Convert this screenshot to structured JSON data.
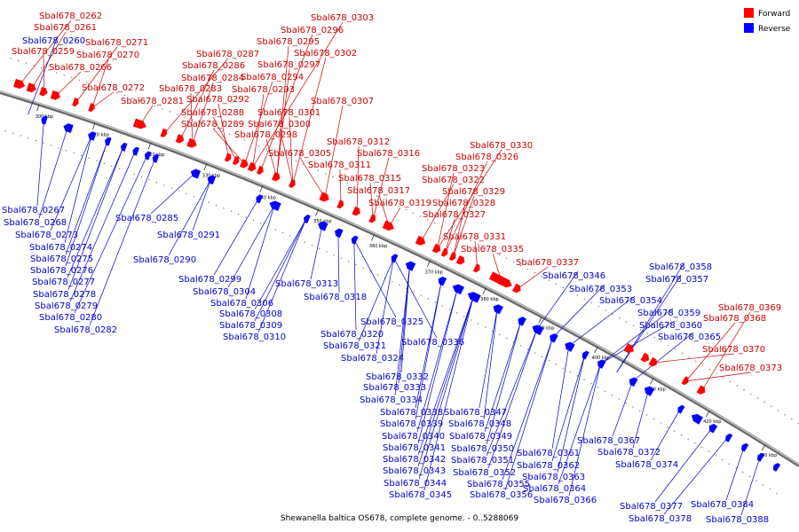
{
  "title": "Shewanella baltica OS678, complete genome. - 0..5288069",
  "legend": [
    {
      "label": "Forward",
      "color": "#ff0000"
    },
    {
      "label": "Reverse",
      "color": "#0000ff"
    }
  ],
  "colors": {
    "forward_text": "#cc0000",
    "reverse_text": "#0000cc",
    "backbone": "#888888"
  },
  "ticks": [
    {
      "kbp": 300,
      "label": "300 kbp"
    },
    {
      "kbp": 310,
      "label": "310 kbp"
    },
    {
      "kbp": 320,
      "label": "320 kbp"
    },
    {
      "kbp": 330,
      "label": "330 kbp"
    },
    {
      "kbp": 340,
      "label": "340 kbp"
    },
    {
      "kbp": 350,
      "label": "350 kbp"
    },
    {
      "kbp": 360,
      "label": "360 kbp"
    },
    {
      "kbp": 370,
      "label": "370 kbp"
    },
    {
      "kbp": 380,
      "label": "380 kbp"
    },
    {
      "kbp": 390,
      "label": "390 kbp"
    },
    {
      "kbp": 400,
      "label": "400 kbp"
    },
    {
      "kbp": 410,
      "label": "410 kbp"
    },
    {
      "kbp": 420,
      "label": "420 kbp"
    },
    {
      "kbp": 430,
      "label": "430 kbp"
    }
  ],
  "forward_labels": [
    "Sbal678_0262",
    "Sbal678_0261",
    "Sbal678_0259",
    "Sbal678_0266",
    "Sbal678_0271",
    "Sbal678_0270",
    "Sbal678_0272",
    "Sbal678_0281",
    "Sbal678_0287",
    "Sbal678_0286",
    "Sbal678_0284",
    "Sbal678_0283",
    "Sbal678_0292",
    "Sbal678_0288",
    "Sbal678_0289",
    "Sbal678_0303",
    "Sbal678_0296",
    "Sbal678_0295",
    "Sbal678_0302",
    "Sbal678_0297",
    "Sbal678_0294",
    "Sbal678_0293",
    "Sbal678_0301",
    "Sbal678_0300",
    "Sbal678_0298",
    "Sbal678_0307",
    "Sbal678_0305",
    "Sbal678_0312",
    "Sbal678_0316",
    "Sbal678_0311",
    "Sbal678_0315",
    "Sbal678_0317",
    "Sbal678_0319",
    "Sbal678_0330",
    "Sbal678_0326",
    "Sbal678_0323",
    "Sbal678_0322",
    "Sbal678_0329",
    "Sbal678_0328",
    "Sbal678_0327",
    "Sbal678_0331",
    "Sbal678_0335",
    "Sbal678_0337",
    "Sbal678_0369",
    "Sbal678_0368",
    "Sbal678_0370",
    "Sbal678_0373"
  ],
  "reverse_labels": [
    "Sbal678_0260",
    "Sbal678_0267",
    "Sbal678_0268",
    "Sbal678_0273",
    "Sbal678_0274",
    "Sbal678_0275",
    "Sbal678_0276",
    "Sbal678_0277",
    "Sbal678_0278",
    "Sbal678_0279",
    "Sbal678_0280",
    "Sbal678_0282",
    "Sbal678_0285",
    "Sbal678_0291",
    "Sbal678_0290",
    "Sbal678_0299",
    "Sbal678_0304",
    "Sbal678_0306",
    "Sbal678_0308",
    "Sbal678_0309",
    "Sbal678_0310",
    "Sbal678_0313",
    "Sbal678_0318",
    "Sbal678_0320",
    "Sbal678_0325",
    "Sbal678_0321",
    "Sbal678_0324",
    "Sbal678_0336",
    "Sbal678_0332",
    "Sbal678_0333",
    "Sbal678_0334",
    "Sbal678_0338",
    "Sbal678_0339",
    "Sbal678_0340",
    "Sbal678_0341",
    "Sbal678_0342",
    "Sbal678_0343",
    "Sbal678_0344",
    "Sbal678_0345",
    "Sbal678_0347",
    "Sbal678_0348",
    "Sbal678_0349",
    "Sbal678_0350",
    "Sbal678_0351",
    "Sbal678_0352",
    "Sbal678_0355",
    "Sbal678_0356",
    "Sbal678_0346",
    "Sbal678_0353",
    "Sbal678_0354",
    "Sbal678_0358",
    "Sbal678_0357",
    "Sbal678_0359",
    "Sbal678_0360",
    "Sbal678_0365",
    "Sbal678_0361",
    "Sbal678_0362",
    "Sbal678_0363",
    "Sbal678_0364",
    "Sbal678_0366",
    "Sbal678_0367",
    "Sbal678_0372",
    "Sbal678_0374",
    "Sbal678_0377",
    "Sbal678_0378",
    "Sbal678_0384",
    "Sbal678_0388"
  ]
}
